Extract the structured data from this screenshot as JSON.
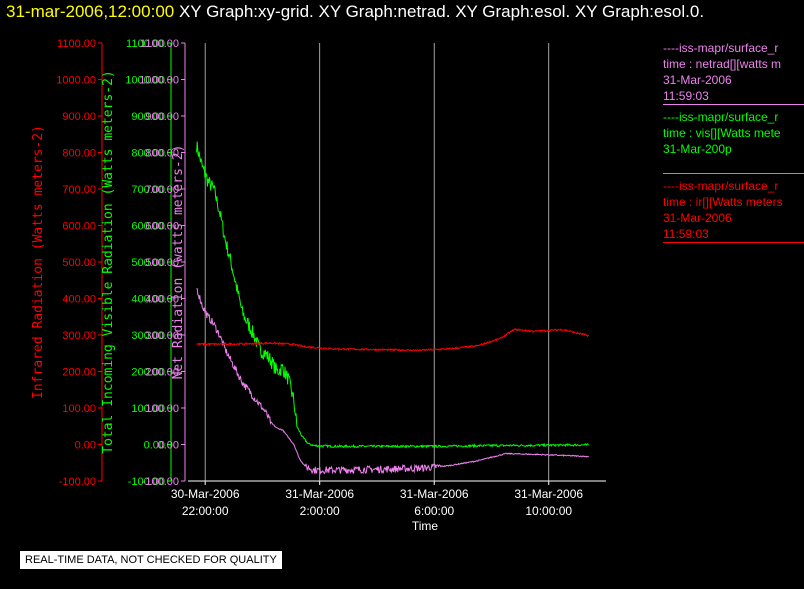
{
  "header": {
    "timestamp": "31-mar-2006,12:00:00",
    "graphs": "XY Graph:xy-grid.  XY Graph:netrad.  XY Graph:esol.  XY Graph:esol.0."
  },
  "colors": {
    "infrared": "#ff0000",
    "visible": "#00ff00",
    "net": "#ee82ee",
    "background": "#000000",
    "title_time": "#ffff00"
  },
  "legend": [
    {
      "name": "legend-netrad",
      "color": "#ee82ee",
      "lines": [
        "----iss-mapr/surface_r",
        "time : netrad[][watts m",
        "31-Mar-2006",
        "11:59:03"
      ]
    },
    {
      "name": "legend-vis",
      "color": "#00ff00",
      "lines": [
        "----iss-mapr/surface_r",
        "time : vis[][Watts mete",
        "31-Mar-200p",
        ""
      ]
    },
    {
      "name": "legend-ir",
      "color": "#ff0000",
      "lines": [
        "----iss-mapr/surface_r",
        "time : ir[][Watts meters",
        "31-Mar-2006",
        "11:59:03"
      ]
    }
  ],
  "qc_note": "REAL-TIME DATA, NOT CHECKED FOR QUALITY",
  "chart_data": {
    "type": "line",
    "xlabel": "Time",
    "x_ticks": [
      {
        "t": 22,
        "line1": "30-Mar-2006",
        "line2": "22:00:00"
      },
      {
        "t": 26,
        "line1": "31-Mar-2006",
        "line2": "2:00:00"
      },
      {
        "t": 30,
        "line1": "31-Mar-2006",
        "line2": "6:00:00"
      },
      {
        "t": 34,
        "line1": "31-Mar-2006",
        "line2": "10:00:00"
      }
    ],
    "xlim": [
      21.4,
      36.0
    ],
    "grid": "vertical",
    "y_axes": [
      {
        "id": "ir",
        "label": "Infrared Radiation (Watts meters-2)",
        "color": "#ff0000",
        "ylim": [
          -100,
          1100
        ],
        "ticks": [
          "-100.00",
          "0.00",
          "100.00",
          "200.00",
          "300.00",
          "400.00",
          "500.00",
          "600.00",
          "700.00",
          "800.00",
          "900.00",
          "1000.00",
          "1100.00"
        ]
      },
      {
        "id": "vis",
        "label": "Total Incoming Visible Radiation (Watts meters-2)",
        "color": "#00ff00",
        "ylim": [
          -100,
          1100
        ],
        "ticks": [
          "-100.00",
          "0.00",
          "100.00",
          "200.00",
          "300.00",
          "400.00",
          "500.00",
          "600.00",
          "700.00",
          "800.00",
          "900.00",
          "1000.00",
          "1100.00"
        ]
      },
      {
        "id": "net",
        "label": "Net Radiation (watts meters-2)",
        "color": "#ee82ee",
        "ylim": [
          -100,
          1100
        ],
        "ticks": [
          "-100.00",
          "0.00",
          "100.00",
          "200.00",
          "300.00",
          "400.00",
          "500.00",
          "600.00",
          "700.00",
          "800.00",
          "900.00",
          "1000.00",
          "1100.00"
        ]
      }
    ],
    "series": [
      {
        "id": "vis",
        "color": "#00ff00",
        "jitter": 40,
        "points": [
          [
            21.7,
            820
          ],
          [
            21.9,
            760
          ],
          [
            22.1,
            720
          ],
          [
            22.3,
            700
          ],
          [
            22.5,
            640
          ],
          [
            22.7,
            560
          ],
          [
            22.9,
            500
          ],
          [
            23.1,
            430
          ],
          [
            23.3,
            360
          ],
          [
            23.5,
            330
          ],
          [
            23.7,
            300
          ],
          [
            23.9,
            260
          ],
          [
            24.1,
            250
          ],
          [
            24.3,
            230
          ],
          [
            24.5,
            200
          ],
          [
            24.7,
            210
          ],
          [
            24.9,
            180
          ],
          [
            25.1,
            120
          ],
          [
            25.2,
            50
          ],
          [
            25.4,
            20
          ],
          [
            25.6,
            2
          ],
          [
            25.8,
            -3
          ],
          [
            26.5,
            -5
          ],
          [
            28,
            -5
          ],
          [
            30,
            -5
          ],
          [
            32,
            -3
          ],
          [
            34,
            -2
          ],
          [
            35.4,
            -1
          ]
        ]
      },
      {
        "id": "net",
        "color": "#ee82ee",
        "jitter": 20,
        "points": [
          [
            21.7,
            430
          ],
          [
            21.9,
            380
          ],
          [
            22.1,
            350
          ],
          [
            22.3,
            330
          ],
          [
            22.5,
            300
          ],
          [
            22.7,
            260
          ],
          [
            22.9,
            230
          ],
          [
            23.1,
            200
          ],
          [
            23.3,
            170
          ],
          [
            23.5,
            150
          ],
          [
            23.7,
            130
          ],
          [
            23.9,
            110
          ],
          [
            24.1,
            90
          ],
          [
            24.3,
            60
          ],
          [
            24.5,
            45
          ],
          [
            24.7,
            40
          ],
          [
            24.9,
            20
          ],
          [
            25.1,
            0
          ],
          [
            25.3,
            -40
          ],
          [
            25.5,
            -60
          ],
          [
            25.8,
            -70
          ],
          [
            26.5,
            -70
          ],
          [
            28,
            -68
          ],
          [
            29.5,
            -65
          ],
          [
            30.5,
            -58
          ],
          [
            31.5,
            -45
          ],
          [
            32.5,
            -25
          ],
          [
            33.5,
            -27
          ],
          [
            34.5,
            -30
          ],
          [
            35.4,
            -33
          ]
        ]
      },
      {
        "id": "ir",
        "color": "#ff0000",
        "jitter": 5,
        "points": [
          [
            21.7,
            275
          ],
          [
            22.5,
            275
          ],
          [
            23.5,
            276
          ],
          [
            24.3,
            278
          ],
          [
            25,
            275
          ],
          [
            25.5,
            268
          ],
          [
            26.5,
            262
          ],
          [
            28,
            260
          ],
          [
            29.5,
            258
          ],
          [
            30.5,
            262
          ],
          [
            31.5,
            270
          ],
          [
            32.3,
            290
          ],
          [
            32.8,
            315
          ],
          [
            33.5,
            310
          ],
          [
            34.5,
            315
          ],
          [
            35,
            305
          ],
          [
            35.4,
            298
          ]
        ]
      }
    ]
  }
}
